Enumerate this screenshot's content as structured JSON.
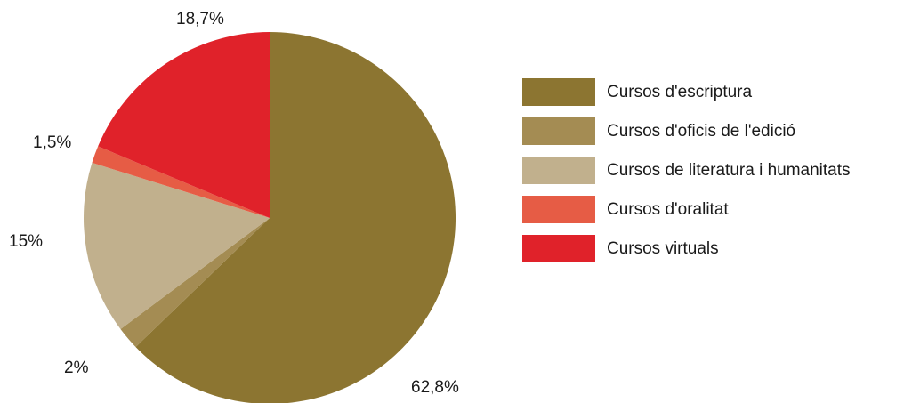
{
  "chart_data": {
    "type": "pie",
    "legend_position": "right",
    "slices": [
      {
        "name": "Cursos d'escriptura",
        "value": 62.8,
        "label": "62,8%",
        "color": "#8c7531"
      },
      {
        "name": "Cursos d'oficis de l'edició",
        "value": 2,
        "label": "2%",
        "color": "#a48c53"
      },
      {
        "name": "Cursos de literatura i humanitats",
        "value": 15,
        "label": "15%",
        "color": "#c1b08d"
      },
      {
        "name": "Cursos d'oralitat",
        "value": 1.5,
        "label": "1,5%",
        "color": "#e65c45"
      },
      {
        "name": "Cursos virtuals",
        "value": 18.7,
        "label": "18,7%",
        "color": "#e0222a"
      }
    ]
  }
}
